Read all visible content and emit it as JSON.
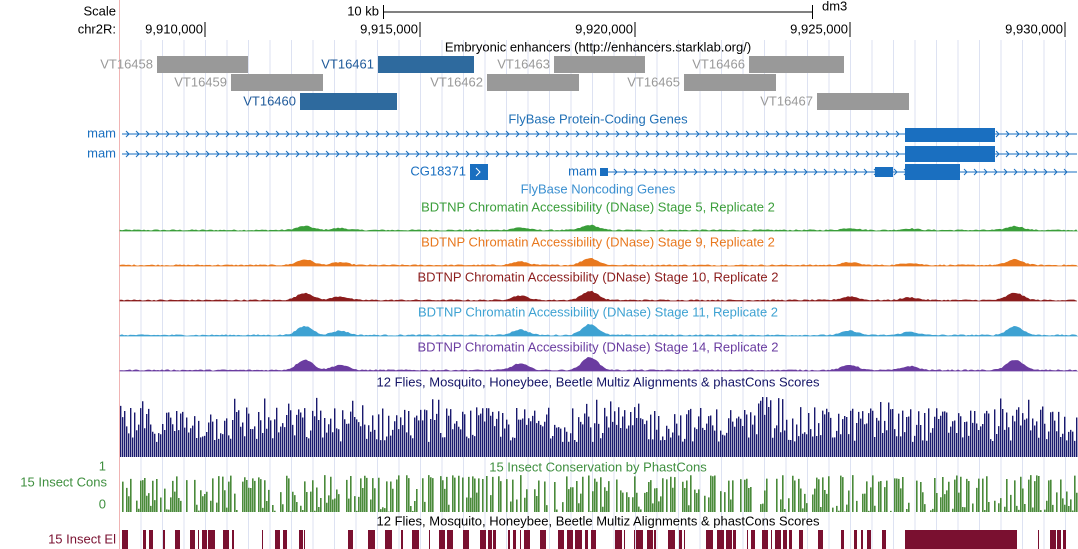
{
  "ruler": {
    "scale": "Scale",
    "bar_label": "10 kb",
    "assembly": "dm3",
    "chrom": "chr2R:",
    "ticks": [
      {
        "value": 9910000,
        "label": "9,910,000"
      },
      {
        "value": 9915000,
        "label": "9,915,000"
      },
      {
        "value": 9920000,
        "label": "9,920,000"
      },
      {
        "value": 9925000,
        "label": "9,925,000"
      },
      {
        "value": 9930000,
        "label": "9,930,000"
      }
    ]
  },
  "enhancers": {
    "title": "Embryonic enhancers (http://enhancers.starklab.org/)",
    "features": [
      "VT16458",
      "VT16459",
      "VT16460",
      "VT16461",
      "VT16462",
      "VT16463",
      "VT16465",
      "VT16466",
      "VT16467"
    ]
  },
  "protein_genes": {
    "title": "FlyBase Protein-Coding Genes",
    "transcripts": [
      "mam",
      "mam",
      "CG18371",
      "mam"
    ]
  },
  "noncoding_genes": {
    "title": "FlyBase Noncoding Genes"
  },
  "dnase_tracks": [
    {
      "title": "BDTNP Chromatin Accessibility (DNase) Stage 5, Replicate 2",
      "color": "#3a9e3a"
    },
    {
      "title": "BDTNP Chromatin Accessibility (DNase) Stage 9, Replicate 2",
      "color": "#e8781e"
    },
    {
      "title": "BDTNP Chromatin Accessibility (DNase) Stage 10, Replicate 2",
      "color": "#8b1c1c"
    },
    {
      "title": "BDTNP Chromatin Accessibility (DNase) Stage 11, Replicate 2",
      "color": "#3ea2d2"
    },
    {
      "title": "BDTNP Chromatin Accessibility (DNase) Stage 14, Replicate 2",
      "color": "#6a3ca0"
    }
  ],
  "multiz": {
    "title": "12 Flies, Mosquito, Honeybee, Beetle Multiz Alignments & phastCons Scores"
  },
  "phastcons": {
    "title": "15 Insect Conservation by PhastCons",
    "short_label": "15 Insect Cons",
    "max_label": 1,
    "min_label": 0
  },
  "elements": {
    "title": "12 Flies, Mosquito, Honeybee, Beetle Multiz Alignments & phastCons Scores",
    "short_label": "15 Insect El"
  }
}
